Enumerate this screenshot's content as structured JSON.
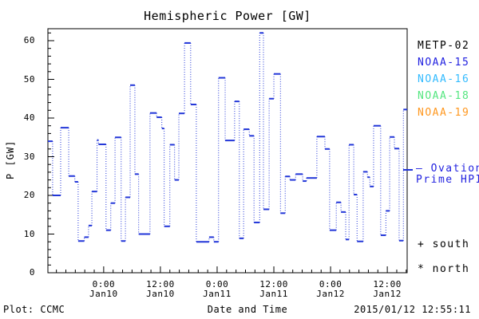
{
  "title": "Hemispheric Power [GW]",
  "axes": {
    "y_label": "P [GW]",
    "x_label": "Date and Time",
    "y_ticks": [
      0,
      10,
      20,
      30,
      40,
      50,
      60
    ],
    "y_minor_step_gw": 2,
    "x_ticks": [
      {
        "time": "0:00",
        "date": "Jan10"
      },
      {
        "time": "12:00",
        "date": "Jan10"
      },
      {
        "time": "0:00",
        "date": "Jan11"
      },
      {
        "time": "12:00",
        "date": "Jan11"
      },
      {
        "time": "0:00",
        "date": "Jan12"
      },
      {
        "time": "12:00",
        "date": "Jan12"
      }
    ],
    "x_minor_step_hours": 2
  },
  "legend": {
    "satellites": [
      {
        "label": "METP-02",
        "color": "#000000"
      },
      {
        "label": "NOAA-15",
        "color": "#2222e0"
      },
      {
        "label": "NOAA-16",
        "color": "#33bbff"
      },
      {
        "label": "NOAA-18",
        "color": "#55e680"
      },
      {
        "label": "NOAA-19",
        "color": "#ff9820"
      }
    ],
    "line_label_line1": "— Ovation",
    "line_label_line2": "Prime HPI",
    "south_marker": "+ south",
    "north_marker": "* north"
  },
  "footer": {
    "credit": "Plot: CCMC",
    "timestamp": "2015/01/12 12:55:11"
  },
  "colors": {
    "line": "#2236d8",
    "frame": "#000000",
    "ovation_text": "#2222e0"
  },
  "chart_data": {
    "type": "line",
    "title": "Hemispheric Power [GW]",
    "xlabel": "Date and Time",
    "ylabel": "P [GW]",
    "series_name": "Ovation Prime HPI",
    "style": "step plot: solid horizontal value segments joined by dotted vertical connectors",
    "grid": false,
    "legend_position": "right outside",
    "x_unit": "hours since 2015-01-10 00:00 UT",
    "xlim": [
      -11.8,
      64.2
    ],
    "ylim": [
      0,
      63
    ],
    "x_tick_hours": [
      0,
      12,
      24,
      36,
      48,
      60
    ],
    "x_tick_labels": [
      "0:00 Jan10",
      "12:00 Jan10",
      "0:00 Jan11",
      "12:00 Jan11",
      "0:00 Jan12",
      "12:00 Jan12"
    ],
    "y_tick_values": [
      0,
      10,
      20,
      30,
      40,
      50,
      60
    ],
    "steps_format": "[t_hours, power_GW] value held until next t",
    "steps": [
      [
        -11.8,
        34.0
      ],
      [
        -10.8,
        20.0
      ],
      [
        -9.1,
        37.5
      ],
      [
        -7.4,
        25.0
      ],
      [
        -6.1,
        23.5
      ],
      [
        -5.4,
        8.2
      ],
      [
        -4.1,
        9.2
      ],
      [
        -3.2,
        12.2
      ],
      [
        -2.5,
        21.0
      ],
      [
        -1.4,
        34.3
      ],
      [
        -1.1,
        33.2
      ],
      [
        0.5,
        11.0
      ],
      [
        1.5,
        18.0
      ],
      [
        2.4,
        35.0
      ],
      [
        3.7,
        8.2
      ],
      [
        4.6,
        19.5
      ],
      [
        5.6,
        48.5
      ],
      [
        6.6,
        25.5
      ],
      [
        7.4,
        10.0
      ],
      [
        9.8,
        41.3
      ],
      [
        11.2,
        40.2
      ],
      [
        12.3,
        37.3
      ],
      [
        12.8,
        12.0
      ],
      [
        14.0,
        33.1
      ],
      [
        15.0,
        24.0
      ],
      [
        15.9,
        41.2
      ],
      [
        17.1,
        59.4
      ],
      [
        18.4,
        43.5
      ],
      [
        19.6,
        8.0
      ],
      [
        22.3,
        9.2
      ],
      [
        23.3,
        8.0
      ],
      [
        24.3,
        50.4
      ],
      [
        25.7,
        34.2
      ],
      [
        27.7,
        44.3
      ],
      [
        28.7,
        8.9
      ],
      [
        29.6,
        37.1
      ],
      [
        30.8,
        35.4
      ],
      [
        31.8,
        13.0
      ],
      [
        33.0,
        62.0
      ],
      [
        33.8,
        16.4
      ],
      [
        35.0,
        45.0
      ],
      [
        36.0,
        51.4
      ],
      [
        37.4,
        15.4
      ],
      [
        38.4,
        24.9
      ],
      [
        39.4,
        24.0
      ],
      [
        40.6,
        25.5
      ],
      [
        42.1,
        23.7
      ],
      [
        42.9,
        24.5
      ],
      [
        45.1,
        35.2
      ],
      [
        46.8,
        32.0
      ],
      [
        47.8,
        11.0
      ],
      [
        49.2,
        18.2
      ],
      [
        50.2,
        15.7
      ],
      [
        51.2,
        8.6
      ],
      [
        51.9,
        33.1
      ],
      [
        52.9,
        20.2
      ],
      [
        53.6,
        8.1
      ],
      [
        54.9,
        26.1
      ],
      [
        55.8,
        24.7
      ],
      [
        56.3,
        22.3
      ],
      [
        57.1,
        38.0
      ],
      [
        58.6,
        9.7
      ],
      [
        59.7,
        16.0
      ],
      [
        60.5,
        35.1
      ],
      [
        61.5,
        32.1
      ],
      [
        62.5,
        8.3
      ],
      [
        63.4,
        42.2
      ]
    ]
  }
}
